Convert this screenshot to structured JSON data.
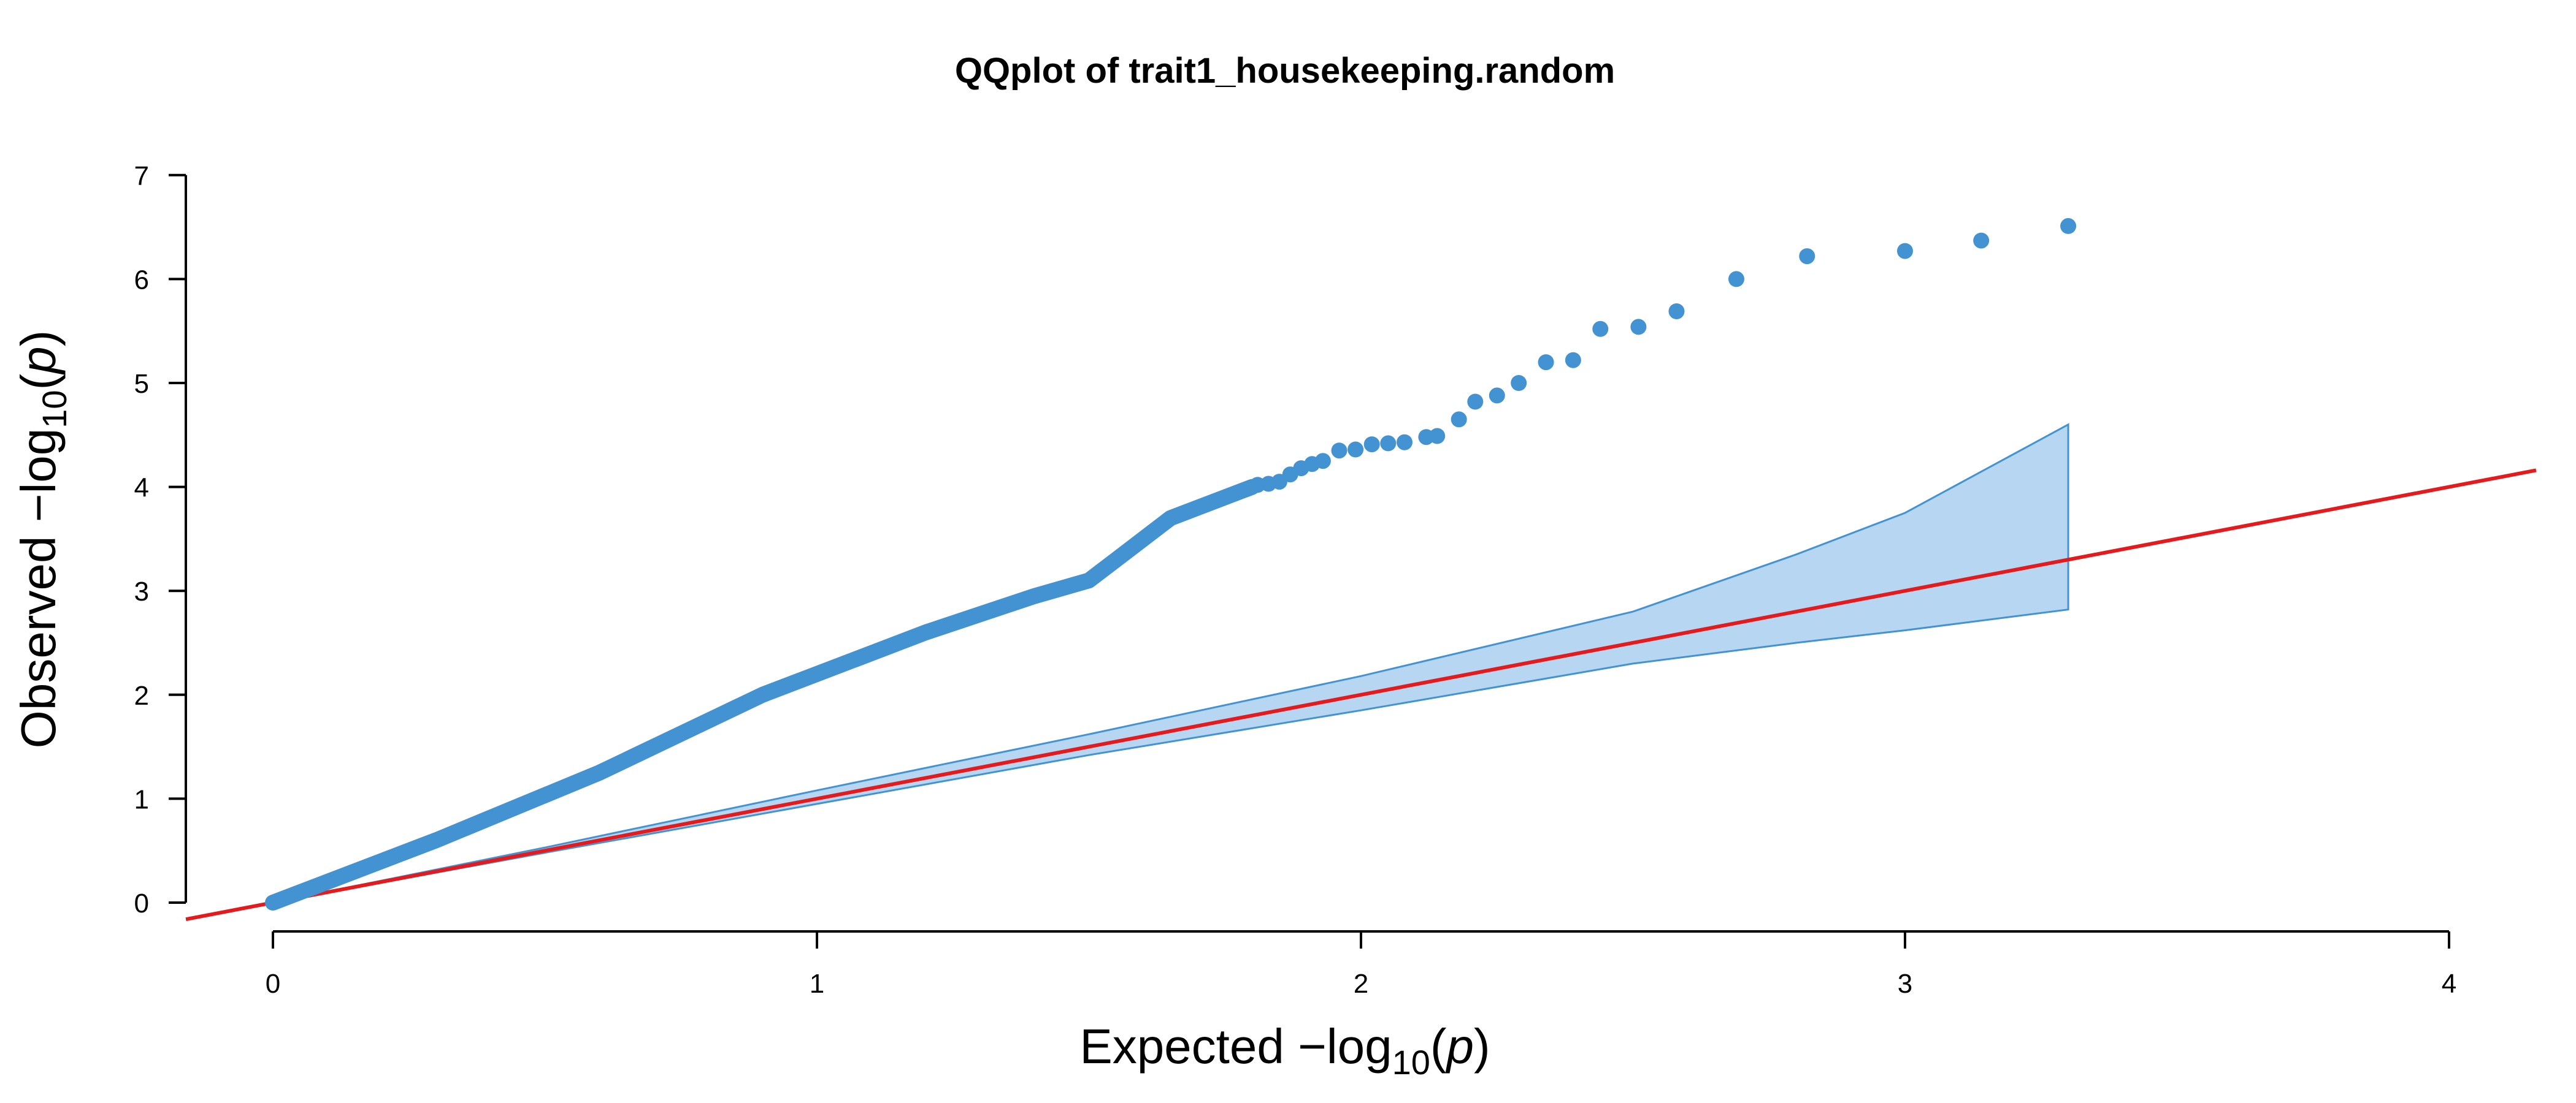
{
  "chart_data": {
    "type": "scatter",
    "title": "QQplot of trait1_housekeeping.random",
    "xlabel": {
      "prefix": "Expected  −log",
      "sub": "10",
      "open": "(",
      "var": "p",
      "close": ")"
    },
    "ylabel": {
      "prefix": "Observed  −log",
      "sub": "10",
      "open": "(",
      "var": "p",
      "close": ")"
    },
    "xlim": [
      0,
      4
    ],
    "ylim": [
      0,
      7
    ],
    "xticks": [
      0,
      1,
      2,
      3,
      4
    ],
    "yticks": [
      0,
      1,
      2,
      3,
      4,
      5,
      6,
      7
    ],
    "x_tick_labels": [
      "0",
      "1",
      "2",
      "3",
      "4"
    ],
    "y_tick_labels": [
      "0",
      "1",
      "2",
      "3",
      "4",
      "5",
      "6",
      "7"
    ],
    "grid": false,
    "point_color": "#4393D3",
    "reference_line": {
      "slope": 1,
      "intercept": 0,
      "color": "#E41A1C"
    },
    "confidence_band": {
      "fill": "#B6D6F2",
      "stroke": "#4393D3",
      "x": [
        0.0,
        0.5,
        1.0,
        1.5,
        2.0,
        2.5,
        2.8,
        3.0,
        3.3
      ],
      "upper": [
        0.0,
        0.53,
        1.08,
        1.62,
        2.18,
        2.8,
        3.35,
        3.75,
        4.6
      ],
      "lower": [
        0.0,
        0.48,
        0.95,
        1.42,
        1.85,
        2.3,
        2.5,
        2.62,
        2.82
      ]
    },
    "trend_segments": {
      "x": [
        0.0,
        0.3,
        0.6,
        0.9,
        1.0,
        1.2,
        1.4,
        1.5,
        1.55,
        1.65,
        1.8
      ],
      "y": [
        0.0,
        0.6,
        1.25,
        2.0,
        2.2,
        2.6,
        2.95,
        3.1,
        3.3,
        3.7,
        4.0
      ]
    },
    "points": [
      [
        1.81,
        4.02
      ],
      [
        1.83,
        4.03
      ],
      [
        1.85,
        4.05
      ],
      [
        1.87,
        4.12
      ],
      [
        1.89,
        4.18
      ],
      [
        1.91,
        4.22
      ],
      [
        1.93,
        4.25
      ],
      [
        1.96,
        4.35
      ],
      [
        1.99,
        4.36
      ],
      [
        2.02,
        4.41
      ],
      [
        2.05,
        4.42
      ],
      [
        2.08,
        4.43
      ],
      [
        2.12,
        4.48
      ],
      [
        2.14,
        4.49
      ],
      [
        2.18,
        4.65
      ],
      [
        2.21,
        4.82
      ],
      [
        2.25,
        4.88
      ],
      [
        2.29,
        5.0
      ],
      [
        2.34,
        5.2
      ],
      [
        2.39,
        5.22
      ],
      [
        2.44,
        5.52
      ],
      [
        2.51,
        5.54
      ],
      [
        2.58,
        5.69
      ],
      [
        2.69,
        6.0
      ],
      [
        2.82,
        6.22
      ],
      [
        3.0,
        6.27
      ],
      [
        3.14,
        6.37
      ],
      [
        3.3,
        6.51
      ]
    ]
  }
}
